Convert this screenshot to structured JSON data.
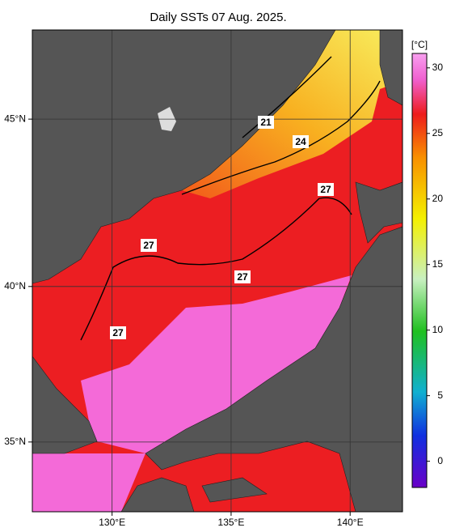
{
  "title": "Daily SSTs 07 Aug. 2025.",
  "map": {
    "xlim": [
      126.65,
      142.2
    ],
    "ylim": [
      32.65,
      47.5
    ],
    "xticks": [
      {
        "value": 130,
        "label": "130°E"
      },
      {
        "value": 135,
        "label": "135°E"
      },
      {
        "value": 140,
        "label": "140°E"
      }
    ],
    "yticks": [
      {
        "value": 35,
        "label": "35°N"
      },
      {
        "value": 40,
        "label": "40°N"
      },
      {
        "value": 45,
        "label": "45°N"
      }
    ],
    "contour_labels": [
      21,
      24,
      27,
      27,
      27,
      27
    ]
  },
  "colorbar": {
    "unit": "[°C]",
    "clim": [
      -2,
      31.1
    ],
    "ticks": [
      0,
      5,
      10,
      15,
      20,
      25,
      30
    ]
  }
}
